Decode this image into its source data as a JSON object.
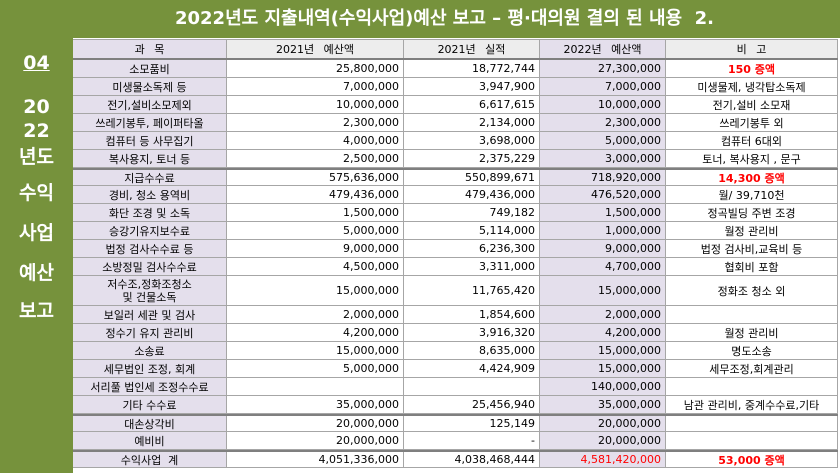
{
  "title": "2022년도 지출내역(수익사업)예산 보고 – 평·대의원 결의 된 내용  2.",
  "sidebar": {
    "items": [
      "04",
      "20",
      "22",
      "년도",
      "수익",
      "사업",
      "예산",
      "보고"
    ]
  },
  "colors": {
    "green": "#76923C",
    "shade": "#E4DFEC",
    "highlight": "#FF0000"
  },
  "table": {
    "headers": {
      "subject": "과 목",
      "budget_2021": "2021년 예산액",
      "actual_2021": "2021년 실적",
      "budget_2022": "2022년 예산액",
      "note": "비 고"
    },
    "rows": [
      {
        "subject": "소모품비",
        "budget_2021": "25,800,000",
        "actual_2021": "18,772,744",
        "budget_2022": "27,300,000",
        "note": "150 증액"
      },
      {
        "subject": "미생물소독제 등",
        "budget_2021": "7,000,000",
        "actual_2021": "3,947,900",
        "budget_2022": "7,000,000",
        "note": "미생물제, 냉각탑소독제"
      },
      {
        "subject": "전기,설비소모제외",
        "budget_2021": "10,000,000",
        "actual_2021": "6,617,615",
        "budget_2022": "10,000,000",
        "note": "전기,설비 소모재"
      },
      {
        "subject": "쓰레기봉투, 페이퍼타올",
        "budget_2021": "2,300,000",
        "actual_2021": "2,134,000",
        "budget_2022": "2,300,000",
        "note": "쓰레기봉투 외"
      },
      {
        "subject": "컴퓨터 등 사무집기",
        "budget_2021": "4,000,000",
        "actual_2021": "3,698,000",
        "budget_2022": "5,000,000",
        "note": "컴퓨터 6대외"
      },
      {
        "subject": "복사용지, 토너 등",
        "budget_2021": "2,500,000",
        "actual_2021": "2,375,229",
        "budget_2022": "3,000,000",
        "note": "토너, 복사용지 , 문구"
      },
      {
        "subject": "지급수수료",
        "budget_2021": "575,636,000",
        "actual_2021": "550,899,671",
        "budget_2022": "718,920,000",
        "note": "14,300 증액"
      },
      {
        "subject": "경비, 청소 용역비",
        "budget_2021": "479,436,000",
        "actual_2021": "479,436,000",
        "budget_2022": "476,520,000",
        "note": "월/ 39,710천"
      },
      {
        "subject": "화단 조경 및 소독",
        "budget_2021": "1,500,000",
        "actual_2021": "749,182",
        "budget_2022": "1,500,000",
        "note": "정곡빌딩 주변 조경"
      },
      {
        "subject": "승강기유지보수료",
        "budget_2021": "5,000,000",
        "actual_2021": "5,114,000",
        "budget_2022": "1,000,000",
        "note": "월정 관리비"
      },
      {
        "subject": "법정 검사수수료 등",
        "budget_2021": "9,000,000",
        "actual_2021": "6,236,300",
        "budget_2022": "9,000,000",
        "note": "법정 검사비,교육비 등"
      },
      {
        "subject": "소방정밀 검사수수료",
        "budget_2021": "4,500,000",
        "actual_2021": "3,311,000",
        "budget_2022": "4,700,000",
        "note": "협회비 포함"
      },
      {
        "subject": "저수조,정화조청소\n및 건물소독",
        "budget_2021": "15,000,000",
        "actual_2021": "11,765,420",
        "budget_2022": "15,000,000",
        "note": "정화조 청소 외"
      },
      {
        "subject": "보일러 세관 및 검사",
        "budget_2021": "2,000,000",
        "actual_2021": "1,854,600",
        "budget_2022": "2,000,000",
        "note": ""
      },
      {
        "subject": "정수기 유지 관리비",
        "budget_2021": "4,200,000",
        "actual_2021": "3,916,320",
        "budget_2022": "4,200,000",
        "note": "월정 관리비"
      },
      {
        "subject": "소송료",
        "budget_2021": "15,000,000",
        "actual_2021": "8,635,000",
        "budget_2022": "15,000,000",
        "note": "명도소송"
      },
      {
        "subject": "세무법인 조정, 회계",
        "budget_2021": "5,000,000",
        "actual_2021": "4,424,909",
        "budget_2022": "15,000,000",
        "note": "세무조정,회계관리"
      },
      {
        "subject": "서리풀 법인세 조정수수료",
        "budget_2021": "",
        "actual_2021": "",
        "budget_2022": "140,000,000",
        "note": ""
      },
      {
        "subject": "기타 수수료",
        "budget_2021": "35,000,000",
        "actual_2021": "25,456,940",
        "budget_2022": "35,000,000",
        "note": "남관 관리비, 중계수수료,기타"
      },
      {
        "subject": "대손상각비",
        "budget_2021": "20,000,000",
        "actual_2021": "125,149",
        "budget_2022": "20,000,000",
        "note": ""
      },
      {
        "subject": "예비비",
        "budget_2021": "20,000,000",
        "actual_2021": "-",
        "budget_2022": "20,000,000",
        "note": ""
      },
      {
        "subject": "수익사업  계",
        "budget_2021": "4,051,336,000",
        "actual_2021": "4,038,468,444",
        "budget_2022": "4,581,420,000",
        "note": "53,000 증액"
      }
    ]
  }
}
